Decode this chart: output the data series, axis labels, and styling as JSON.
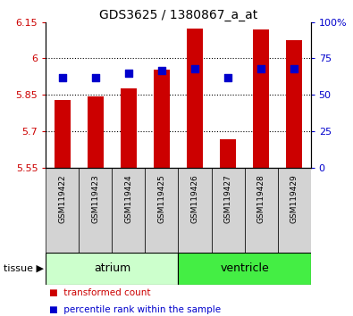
{
  "title": "GDS3625 / 1380867_a_at",
  "samples": [
    "GSM119422",
    "GSM119423",
    "GSM119424",
    "GSM119425",
    "GSM119426",
    "GSM119427",
    "GSM119428",
    "GSM119429"
  ],
  "red_values": [
    5.83,
    5.845,
    5.875,
    5.955,
    6.125,
    5.665,
    6.12,
    6.075
  ],
  "blue_values": [
    62,
    62,
    65,
    67,
    68,
    62,
    68,
    68
  ],
  "ymin": 5.55,
  "ymax": 6.15,
  "yticks": [
    5.55,
    5.7,
    5.85,
    6.0,
    6.15
  ],
  "ytick_labels": [
    "5.55",
    "5.7",
    "5.85",
    "6",
    "6.15"
  ],
  "y2min": 0,
  "y2max": 100,
  "y2ticks": [
    0,
    25,
    50,
    75,
    100
  ],
  "y2labels": [
    "0",
    "25",
    "50",
    "75",
    "100%"
  ],
  "tissue_groups": [
    {
      "label": "atrium",
      "start": 0,
      "end": 4,
      "color": "#ccffcc"
    },
    {
      "label": "ventricle",
      "start": 4,
      "end": 8,
      "color": "#44ee44"
    }
  ],
  "bar_color": "#cc0000",
  "dot_color": "#0000cc",
  "bar_width": 0.5,
  "dot_size": 40,
  "bar_bottom": 5.55,
  "legend_items": [
    {
      "label": "transformed count",
      "color": "#cc0000"
    },
    {
      "label": "percentile rank within the sample",
      "color": "#0000cc"
    }
  ],
  "label_color_left": "#cc0000",
  "label_color_right": "#0000cc",
  "title_fontsize": 10,
  "tick_label_fontsize": 8,
  "sample_fontsize": 6.5,
  "tissue_fontsize": 9,
  "legend_fontsize": 7.5
}
